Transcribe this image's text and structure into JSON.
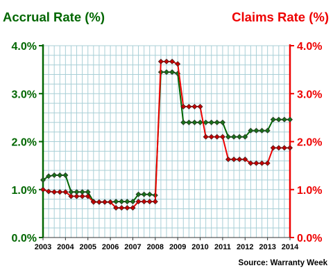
{
  "chart_data": {
    "type": "line",
    "title_left": "Accrual Rate (%)",
    "title_right": "Claims Rate (%)",
    "source": "Source: Warranty Week",
    "x_tick_labels": [
      "2003",
      "2004",
      "2005",
      "2006",
      "2007",
      "2008",
      "2009",
      "2010",
      "2011",
      "2012",
      "2013",
      "2014"
    ],
    "y_tick_labels": [
      "0.0%",
      "1.0%",
      "2.0%",
      "3.0%",
      "4.0%"
    ],
    "ylim": [
      0,
      4
    ],
    "xlim": [
      2003,
      2014
    ],
    "grid": true,
    "colors": {
      "accrual": "#006600",
      "claims": "#ee0000",
      "grid": "#a8cfd6",
      "accrual_marker": "#1a6e1a",
      "claims_marker": "#c00000"
    },
    "series": [
      {
        "key": "accrual",
        "x": [
          2003.0,
          2003.25,
          2003.5,
          2003.75,
          2004.0,
          2004.25,
          2004.5,
          2004.75,
          2005.0,
          2005.25,
          2005.5,
          2005.75,
          2006.0,
          2006.25,
          2006.5,
          2006.75,
          2007.0,
          2007.25,
          2007.5,
          2007.75,
          2008.0,
          2008.25,
          2008.5,
          2008.75,
          2009.0,
          2009.25,
          2009.5,
          2009.75,
          2010.0,
          2010.25,
          2010.5,
          2010.75,
          2011.0,
          2011.25,
          2011.5,
          2011.75,
          2012.0,
          2012.25,
          2012.5,
          2012.75,
          2013.0,
          2013.25,
          2013.5,
          2013.75,
          2014.0
        ],
        "values": [
          1.2,
          1.28,
          1.3,
          1.3,
          1.3,
          0.95,
          0.95,
          0.95,
          0.95,
          0.75,
          0.74,
          0.74,
          0.74,
          0.75,
          0.75,
          0.75,
          0.75,
          0.9,
          0.9,
          0.9,
          0.88,
          3.45,
          3.45,
          3.45,
          3.42,
          2.4,
          2.4,
          2.4,
          2.4,
          2.4,
          2.4,
          2.4,
          2.4,
          2.1,
          2.1,
          2.1,
          2.1,
          2.23,
          2.23,
          2.23,
          2.23,
          2.46,
          2.46,
          2.46,
          2.46
        ]
      },
      {
        "key": "claims",
        "x": [
          2003.0,
          2003.25,
          2003.5,
          2003.75,
          2004.0,
          2004.25,
          2004.5,
          2004.75,
          2005.0,
          2005.25,
          2005.5,
          2005.75,
          2006.0,
          2006.25,
          2006.5,
          2006.75,
          2007.0,
          2007.25,
          2007.5,
          2007.75,
          2008.0,
          2008.25,
          2008.5,
          2008.75,
          2009.0,
          2009.25,
          2009.5,
          2009.75,
          2010.0,
          2010.25,
          2010.5,
          2010.75,
          2011.0,
          2011.25,
          2011.5,
          2011.75,
          2012.0,
          2012.25,
          2012.5,
          2012.75,
          2013.0,
          2013.25,
          2013.5,
          2013.75,
          2014.0
        ],
        "values": [
          1.0,
          0.96,
          0.95,
          0.95,
          0.95,
          0.86,
          0.86,
          0.86,
          0.86,
          0.74,
          0.74,
          0.74,
          0.74,
          0.62,
          0.62,
          0.62,
          0.62,
          0.75,
          0.75,
          0.75,
          0.75,
          3.67,
          3.67,
          3.67,
          3.62,
          2.73,
          2.73,
          2.73,
          2.73,
          2.1,
          2.1,
          2.1,
          2.1,
          1.63,
          1.63,
          1.63,
          1.63,
          1.55,
          1.55,
          1.55,
          1.55,
          1.87,
          1.87,
          1.87,
          1.87
        ]
      }
    ]
  }
}
